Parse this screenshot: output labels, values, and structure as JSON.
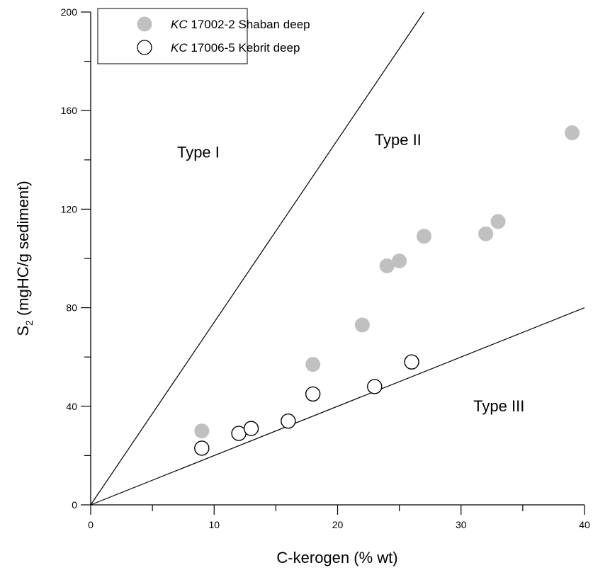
{
  "chart_data": {
    "type": "scatter",
    "xlabel": "C-kerogen (% wt)",
    "ylabel_main": "S",
    "ylabel_sub": "2",
    "ylabel_rest": " (mgHC/g sediment)",
    "xlim": [
      0,
      40
    ],
    "ylim": [
      0,
      200
    ],
    "xticks": [
      0,
      10,
      20,
      30,
      40
    ],
    "yticks": [
      0,
      40,
      80,
      120,
      160,
      200
    ],
    "grid": false,
    "legend_position": "top-left",
    "series": [
      {
        "name_italic": "KC",
        "name_rest": " 17002-2 Shaban deep",
        "marker": "filled-circle",
        "color": "#c0c0c0",
        "points": [
          {
            "x": 9,
            "y": 30
          },
          {
            "x": 18,
            "y": 57
          },
          {
            "x": 22,
            "y": 73
          },
          {
            "x": 24,
            "y": 97
          },
          {
            "x": 25,
            "y": 99
          },
          {
            "x": 27,
            "y": 109
          },
          {
            "x": 32,
            "y": 110
          },
          {
            "x": 33,
            "y": 115
          },
          {
            "x": 39,
            "y": 151
          }
        ]
      },
      {
        "name_italic": "KC",
        "name_rest": " 17006-5 Kebrit deep",
        "marker": "open-circle",
        "color": "#000000",
        "points": [
          {
            "x": 9,
            "y": 23
          },
          {
            "x": 12,
            "y": 29
          },
          {
            "x": 13,
            "y": 31
          },
          {
            "x": 16,
            "y": 34
          },
          {
            "x": 18,
            "y": 45
          },
          {
            "x": 23,
            "y": 48
          },
          {
            "x": 26,
            "y": 58
          }
        ]
      }
    ],
    "boundary_lines": [
      {
        "from": [
          0,
          0
        ],
        "to": [
          27,
          200
        ]
      },
      {
        "from": [
          0,
          0
        ],
        "to": [
          40,
          80
        ]
      }
    ],
    "region_labels": [
      {
        "text": "Type I",
        "x": 7,
        "y": 141
      },
      {
        "text": "Type II",
        "x": 23,
        "y": 146
      },
      {
        "text": "Type III",
        "x": 31,
        "y": 38
      }
    ]
  }
}
